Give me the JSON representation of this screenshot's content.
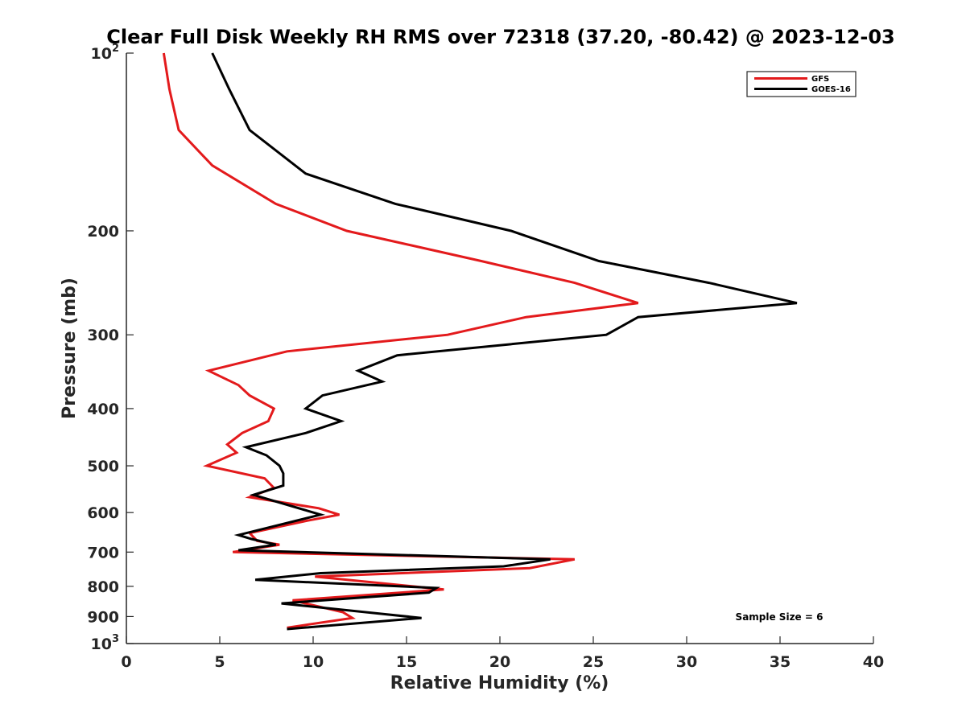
{
  "chart_data": {
    "type": "line",
    "title": "Clear Full Disk Weekly RH RMS over 72318 (37.20, -80.42) @ 2023-12-03",
    "xlabel": "Relative Humidity (%)",
    "ylabel": "Pressure (mb)",
    "xlim": [
      0,
      40
    ],
    "ylim": [
      1000,
      100
    ],
    "yscale": "log",
    "y_reversed": true,
    "grid": false,
    "legend_position": "top-right",
    "xticks": [
      "0",
      "5",
      "10",
      "15",
      "20",
      "25",
      "30",
      "35",
      "40"
    ],
    "yticks": [
      {
        "value": 100,
        "base": "10",
        "exp": "2"
      },
      {
        "value": 200,
        "label": "200"
      },
      {
        "value": 300,
        "label": "300"
      },
      {
        "value": 400,
        "label": "400"
      },
      {
        "value": 500,
        "label": "500"
      },
      {
        "value": 600,
        "label": "600"
      },
      {
        "value": 700,
        "label": "700"
      },
      {
        "value": 800,
        "label": "800"
      },
      {
        "value": 900,
        "label": "900"
      },
      {
        "value": 1000,
        "base": "10",
        "exp": "3"
      }
    ],
    "annotation": "Sample Size = 6",
    "series": [
      {
        "name": "GFS",
        "color": "#e31a1c",
        "points": [
          [
            2.0,
            100
          ],
          [
            2.3,
            115
          ],
          [
            2.8,
            135
          ],
          [
            4.6,
            155
          ],
          [
            8.0,
            180
          ],
          [
            11.8,
            200
          ],
          [
            19.0,
            225
          ],
          [
            24.0,
            245
          ],
          [
            27.4,
            265
          ],
          [
            21.4,
            280
          ],
          [
            17.2,
            300
          ],
          [
            8.6,
            320
          ],
          [
            4.4,
            345
          ],
          [
            6.0,
            365
          ],
          [
            6.6,
            380
          ],
          [
            7.9,
            400
          ],
          [
            7.6,
            420
          ],
          [
            6.2,
            440
          ],
          [
            5.4,
            460
          ],
          [
            5.9,
            475
          ],
          [
            4.3,
            500
          ],
          [
            7.4,
            525
          ],
          [
            7.9,
            545
          ],
          [
            6.6,
            565
          ],
          [
            10.3,
            590
          ],
          [
            11.4,
            605
          ],
          [
            9.6,
            620
          ],
          [
            6.6,
            650
          ],
          [
            7.0,
            670
          ],
          [
            8.2,
            680
          ],
          [
            5.7,
            700
          ],
          [
            24.0,
            720
          ],
          [
            21.6,
            745
          ],
          [
            10.1,
            770
          ],
          [
            17.0,
            810
          ],
          [
            8.9,
            845
          ],
          [
            11.6,
            885
          ],
          [
            12.1,
            905
          ],
          [
            8.6,
            940
          ]
        ]
      },
      {
        "name": "GOES-16",
        "color": "#000000",
        "points": [
          [
            4.6,
            100
          ],
          [
            5.5,
            115
          ],
          [
            6.6,
            135
          ],
          [
            9.6,
            160
          ],
          [
            14.4,
            180
          ],
          [
            20.6,
            200
          ],
          [
            25.3,
            225
          ],
          [
            31.2,
            245
          ],
          [
            35.9,
            265
          ],
          [
            27.4,
            280
          ],
          [
            25.7,
            300
          ],
          [
            14.5,
            325
          ],
          [
            12.4,
            345
          ],
          [
            13.7,
            360
          ],
          [
            10.5,
            380
          ],
          [
            9.6,
            400
          ],
          [
            11.5,
            420
          ],
          [
            9.6,
            440
          ],
          [
            6.4,
            465
          ],
          [
            7.5,
            480
          ],
          [
            8.2,
            500
          ],
          [
            8.4,
            515
          ],
          [
            8.4,
            540
          ],
          [
            6.8,
            560
          ],
          [
            10.4,
            605
          ],
          [
            6.0,
            655
          ],
          [
            6.7,
            665
          ],
          [
            8.0,
            680
          ],
          [
            6.0,
            695
          ],
          [
            22.7,
            720
          ],
          [
            20.2,
            740
          ],
          [
            10.4,
            760
          ],
          [
            6.9,
            780
          ],
          [
            16.6,
            805
          ],
          [
            16.2,
            820
          ],
          [
            8.3,
            855
          ],
          [
            15.8,
            905
          ],
          [
            8.6,
            945
          ]
        ]
      }
    ]
  }
}
